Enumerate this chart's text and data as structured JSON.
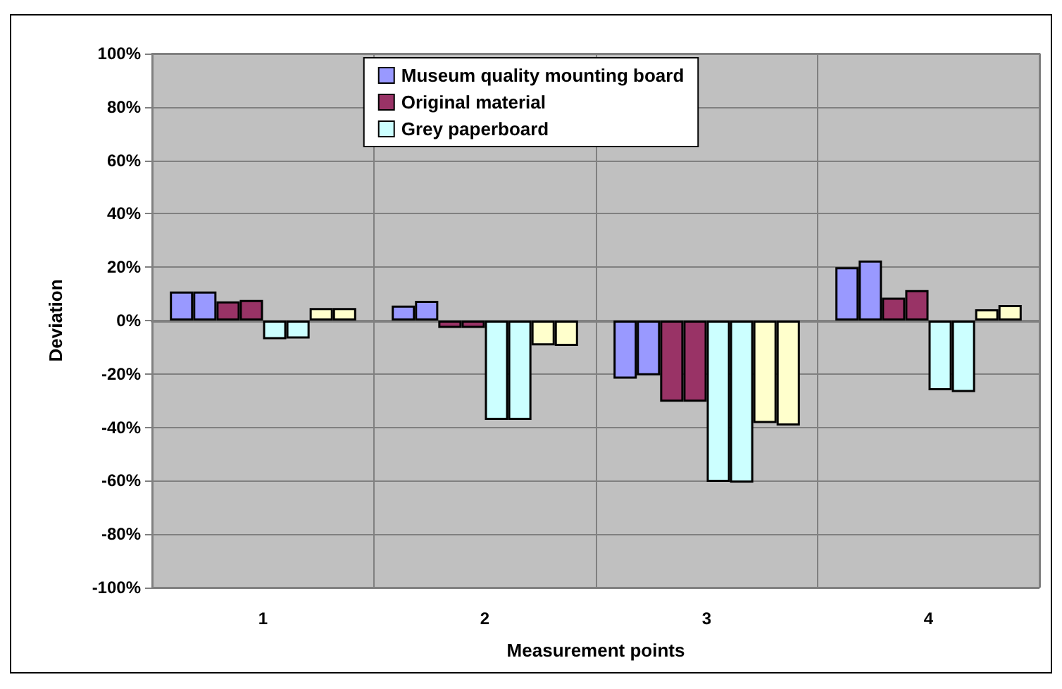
{
  "chart_data": {
    "type": "bar",
    "xlabel": "Measurement points",
    "ylabel": "Deviation",
    "categories": [
      "1",
      "2",
      "3",
      "4"
    ],
    "series": [
      {
        "name": "Museum quality mounting board",
        "color": "#9999ff",
        "values": [
          10.9,
          5.6,
          -21.8,
          20
        ]
      },
      {
        "color": "#9999ff",
        "values": [
          10.9,
          7.4,
          -20.5,
          22.5
        ]
      },
      {
        "name": "Original material",
        "color": "#993366",
        "values": [
          7.2,
          -2.8,
          -30.4,
          8.6
        ]
      },
      {
        "color": "#993366",
        "values": [
          7.7,
          -2.8,
          -30.4,
          11.4
        ]
      },
      {
        "name": "Grey paperboard",
        "color": "#ccffff",
        "values": [
          -7,
          -37.2,
          -60.4,
          -26.1
        ]
      },
      {
        "color": "#ccffff",
        "values": [
          -6.7,
          -37.2,
          -60.7,
          -26.8
        ]
      },
      {
        "color": "#ffffcc",
        "values": [
          4.7,
          -9.3,
          -38.4,
          4.2
        ]
      },
      {
        "color": "#ffffcc",
        "values": [
          4.7,
          -9.5,
          -39.3,
          5.8
        ]
      }
    ],
    "ylim": [
      -100,
      100
    ],
    "yticks": [
      {
        "value": -100,
        "label": "-100%"
      },
      {
        "value": -80,
        "label": "-80%"
      },
      {
        "value": -60,
        "label": "-60%"
      },
      {
        "value": -40,
        "label": "-40%"
      },
      {
        "value": -20,
        "label": "-20%"
      },
      {
        "value": 0,
        "label": "0%"
      },
      {
        "value": 20,
        "label": "20%"
      },
      {
        "value": 40,
        "label": "40%"
      },
      {
        "value": 60,
        "label": "60%"
      },
      {
        "value": 80,
        "label": "80%"
      },
      {
        "value": 100,
        "label": "100%"
      }
    ],
    "grid": true,
    "legend": "top"
  }
}
